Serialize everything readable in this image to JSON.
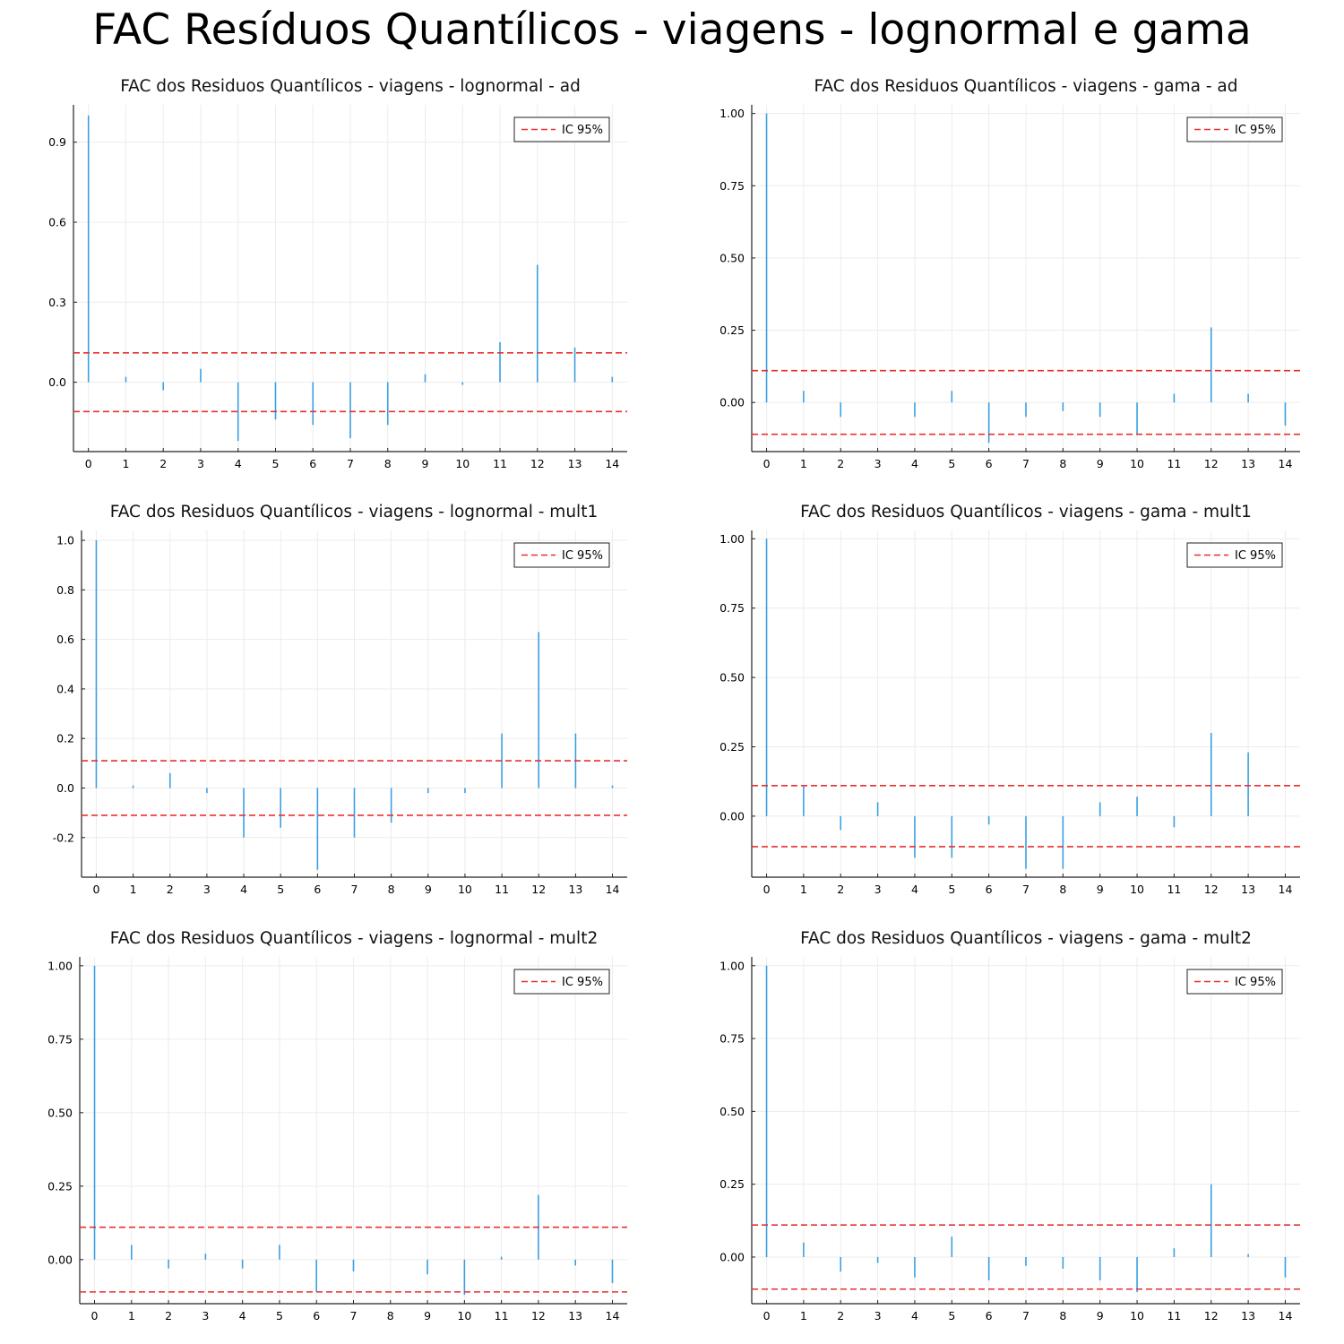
{
  "title": "FAC Resíduos Quantílicos - viagens - lognormal e gama",
  "colors": {
    "bar": "#3a9fe0",
    "ci": "#e8302f",
    "grid": "#ececec",
    "axis": "#222222"
  },
  "chart_data": [
    {
      "type": "bar",
      "title": "FAC dos Residuos Quantílicos - viagens - lognormal - ad",
      "x": [
        0,
        1,
        2,
        3,
        4,
        5,
        6,
        7,
        8,
        9,
        10,
        11,
        12,
        13,
        14
      ],
      "values": [
        1.0,
        0.02,
        -0.03,
        0.05,
        -0.22,
        -0.14,
        -0.16,
        -0.21,
        -0.16,
        0.03,
        -0.01,
        0.15,
        0.44,
        0.13,
        0.02
      ],
      "ylim": [
        -0.26,
        1.04
      ],
      "yticks": [
        0.0,
        0.3,
        0.6,
        0.9
      ],
      "ytick_labels": [
        "0.0",
        "0.3",
        "0.6",
        "0.9"
      ],
      "ci": 0.11,
      "legend": "IC 95%",
      "legend_position": "top-right",
      "grid": true
    },
    {
      "type": "bar",
      "title": "FAC dos Residuos Quantílicos - viagens - gama - ad",
      "x": [
        0,
        1,
        2,
        3,
        4,
        5,
        6,
        7,
        8,
        9,
        10,
        11,
        12,
        13,
        14
      ],
      "values": [
        1.0,
        0.04,
        -0.05,
        0.0,
        -0.05,
        0.04,
        -0.14,
        -0.05,
        -0.03,
        -0.05,
        -0.11,
        0.03,
        0.26,
        0.03,
        -0.08
      ],
      "ylim": [
        -0.17,
        1.03
      ],
      "yticks": [
        0.0,
        0.25,
        0.5,
        0.75,
        1.0
      ],
      "ytick_labels": [
        "0.00",
        "0.25",
        "0.50",
        "0.75",
        "1.00"
      ],
      "ci": 0.11,
      "legend": "IC 95%",
      "legend_position": "top-right",
      "grid": true
    },
    {
      "type": "bar",
      "title": "FAC dos Residuos Quantílicos - viagens - lognormal - mult1",
      "x": [
        0,
        1,
        2,
        3,
        4,
        5,
        6,
        7,
        8,
        9,
        10,
        11,
        12,
        13,
        14
      ],
      "values": [
        1.0,
        0.01,
        0.06,
        -0.02,
        -0.2,
        -0.16,
        -0.33,
        -0.2,
        -0.14,
        -0.02,
        -0.02,
        0.22,
        0.63,
        0.22,
        0.01
      ],
      "ylim": [
        -0.36,
        1.04
      ],
      "yticks": [
        -0.2,
        0.0,
        0.2,
        0.4,
        0.6,
        0.8,
        1.0
      ],
      "ytick_labels": [
        "-0.2",
        "0.0",
        "0.2",
        "0.4",
        "0.6",
        "0.8",
        "1.0"
      ],
      "ci": 0.11,
      "legend": "IC 95%",
      "legend_position": "top-right",
      "grid": true
    },
    {
      "type": "bar",
      "title": "FAC dos Residuos Quantílicos - viagens - gama - mult1",
      "x": [
        0,
        1,
        2,
        3,
        4,
        5,
        6,
        7,
        8,
        9,
        10,
        11,
        12,
        13,
        14
      ],
      "values": [
        1.0,
        0.11,
        -0.05,
        0.05,
        -0.15,
        -0.15,
        -0.03,
        -0.19,
        -0.19,
        0.05,
        0.07,
        -0.04,
        0.3,
        0.23,
        0.0
      ],
      "ylim": [
        -0.22,
        1.03
      ],
      "yticks": [
        0.0,
        0.25,
        0.5,
        0.75,
        1.0
      ],
      "ytick_labels": [
        "0.00",
        "0.25",
        "0.50",
        "0.75",
        "1.00"
      ],
      "ci": 0.11,
      "legend": "IC 95%",
      "legend_position": "top-right",
      "grid": true
    },
    {
      "type": "bar",
      "title": "FAC dos Residuos Quantílicos - viagens - lognormal - mult2",
      "x": [
        0,
        1,
        2,
        3,
        4,
        5,
        6,
        7,
        8,
        9,
        10,
        11,
        12,
        13,
        14
      ],
      "values": [
        1.0,
        0.05,
        -0.03,
        0.02,
        -0.03,
        0.05,
        -0.11,
        -0.04,
        0.0,
        -0.05,
        -0.12,
        0.01,
        0.22,
        -0.02,
        -0.08
      ],
      "ylim": [
        -0.15,
        1.03
      ],
      "yticks": [
        0.0,
        0.25,
        0.5,
        0.75,
        1.0
      ],
      "ytick_labels": [
        "0.00",
        "0.25",
        "0.50",
        "0.75",
        "1.00"
      ],
      "ci": 0.11,
      "legend": "IC 95%",
      "legend_position": "top-right",
      "grid": true
    },
    {
      "type": "bar",
      "title": "FAC dos Residuos Quantílicos - viagens - gama - mult2",
      "x": [
        0,
        1,
        2,
        3,
        4,
        5,
        6,
        7,
        8,
        9,
        10,
        11,
        12,
        13,
        14
      ],
      "values": [
        1.0,
        0.05,
        -0.05,
        -0.02,
        -0.07,
        0.07,
        -0.08,
        -0.03,
        -0.04,
        -0.08,
        -0.12,
        0.03,
        0.25,
        0.01,
        -0.07
      ],
      "ylim": [
        -0.16,
        1.03
      ],
      "yticks": [
        0.0,
        0.25,
        0.5,
        0.75,
        1.0
      ],
      "ytick_labels": [
        "0.00",
        "0.25",
        "0.50",
        "0.75",
        "1.00"
      ],
      "ci": 0.11,
      "legend": "IC 95%",
      "legend_position": "top-right",
      "grid": true
    }
  ]
}
